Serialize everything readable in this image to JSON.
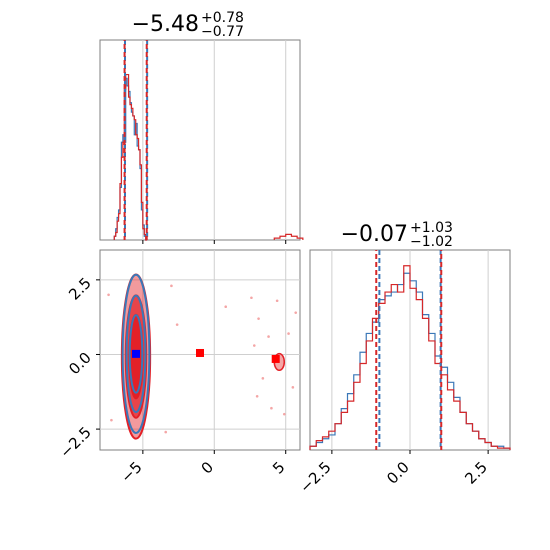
{
  "colors": {
    "blue": "#3b78b8",
    "red": "#d62728",
    "red_fill": "#f4a6a6",
    "red_dark": "#e32026",
    "marker_blue": "#0000ff",
    "marker_red": "#ff0000",
    "grid": "#cfcfcf",
    "axis": "#7f7f7f"
  },
  "chart_data": [
    {
      "type": "histogram",
      "panel": "param1-marginal",
      "title_value": "−5.48",
      "title_sup": "+0.78",
      "title_sub": "−0.77",
      "xlim": [
        -8.0,
        6.0
      ],
      "x_gridlines": [
        -5,
        0,
        5
      ],
      "quantile_lines": {
        "blue": [
          -6.25,
          -4.7
        ],
        "red": [
          -6.28,
          -4.73
        ]
      },
      "blue_hist": {
        "x_start": -7.0,
        "bin_width": 0.1,
        "values": [
          0.02,
          0.06,
          0.12,
          0.16,
          0.28,
          0.52,
          0.56,
          0.52,
          0.86,
          0.82,
          0.79,
          0.73,
          0.68,
          0.66,
          0.56,
          0.62,
          0.5,
          0.48,
          0.38,
          0.16,
          0.08,
          0.02,
          0
        ]
      },
      "red_hist": {
        "x_start": -7.0,
        "bin_width": 0.1,
        "values": [
          0.02,
          0.04,
          0.1,
          0.14,
          0.3,
          0.44,
          0.52,
          0.8,
          0.88,
          0.88,
          0.76,
          0.72,
          0.7,
          0.66,
          0.64,
          0.56,
          0.54,
          0.48,
          0.4,
          0.2,
          0.06,
          0.03,
          0
        ],
        "tail_x": [
          4.2,
          4.6,
          5.0,
          5.4,
          5.8
        ],
        "tail_values": [
          0.01,
          0.02,
          0.03,
          0.02,
          0.01
        ]
      },
      "ymax": 1.0
    },
    {
      "type": "contour-scatter",
      "panel": "param1-vs-param2",
      "xlim": [
        -8.0,
        6.0
      ],
      "ylim": [
        -3.2,
        3.5
      ],
      "x_ticks": [
        -5,
        0,
        5
      ],
      "x_tick_labels": [
        "−5",
        "0",
        "5"
      ],
      "y_ticks": [
        -2.5,
        0.0,
        2.5
      ],
      "y_tick_labels": [
        "−2.5",
        "0.0",
        "2.5"
      ],
      "red_center": [
        -5.48,
        -0.07
      ],
      "blue_center": [
        -5.48,
        0.02
      ],
      "red_contours": [
        {
          "rx": 1.8,
          "ry": 2.75,
          "filled": true,
          "opacity": 0.45
        },
        {
          "rx": 1.3,
          "ry": 2.05,
          "filled": true,
          "opacity": 0.7
        },
        {
          "rx": 0.85,
          "ry": 1.4,
          "filled": true,
          "opacity": 0.95
        }
      ],
      "blue_contours": [
        {
          "rx": 1.7,
          "ry": 2.65
        },
        {
          "rx": 1.2,
          "ry": 1.95
        },
        {
          "rx": 0.8,
          "ry": 1.3
        }
      ],
      "secondary_mode": {
        "center": [
          4.55,
          -0.25
        ],
        "rx": 0.35,
        "ry": 0.28
      },
      "red_markers": [
        [
          -1.0,
          0.05
        ],
        [
          4.3,
          -0.15
        ]
      ],
      "blue_marker": [
        -5.48,
        0.02
      ],
      "sparse_points": [
        [
          2.6,
          1.9
        ],
        [
          3.1,
          1.2
        ],
        [
          3.4,
          -0.8
        ],
        [
          3.8,
          0.6
        ],
        [
          4.0,
          -1.8
        ],
        [
          4.4,
          1.8
        ],
        [
          5.2,
          0.7
        ],
        [
          5.5,
          -1.1
        ],
        [
          5.7,
          1.4
        ],
        [
          3.0,
          -1.4
        ],
        [
          2.8,
          0.3
        ],
        [
          4.9,
          -2.0
        ],
        [
          -3.0,
          2.3
        ],
        [
          -3.4,
          -2.6
        ],
        [
          -2.6,
          1.0
        ],
        [
          -7.4,
          2.0
        ],
        [
          -7.2,
          -2.2
        ],
        [
          0.8,
          1.6
        ]
      ]
    },
    {
      "type": "histogram",
      "panel": "param2-marginal",
      "title_value": "−0.07",
      "title_sup": "+1.03",
      "title_sub": "−1.02",
      "xlim": [
        -3.2,
        3.2
      ],
      "x_ticks": [
        -2.5,
        0.0,
        2.5
      ],
      "x_tick_labels": [
        "−2.5",
        "0.0",
        "2.5"
      ],
      "quantile_lines": {
        "blue": [
          -0.98,
          0.98
        ],
        "red": [
          -1.08,
          1.0
        ]
      },
      "blue_hist": {
        "x_start": -3.2,
        "bin_width": 0.2,
        "values": [
          0.02,
          0.04,
          0.06,
          0.08,
          0.14,
          0.22,
          0.3,
          0.4,
          0.52,
          0.62,
          0.68,
          0.8,
          0.82,
          0.84,
          0.88,
          0.94,
          0.9,
          0.84,
          0.72,
          0.62,
          0.5,
          0.44,
          0.36,
          0.28,
          0.2,
          0.14,
          0.1,
          0.06,
          0.04,
          0.02,
          0.02,
          0.01
        ]
      },
      "red_hist": {
        "x_start": -3.2,
        "bin_width": 0.2,
        "values": [
          0.02,
          0.05,
          0.07,
          0.1,
          0.14,
          0.2,
          0.26,
          0.36,
          0.46,
          0.58,
          0.7,
          0.78,
          0.84,
          0.88,
          0.84,
          0.98,
          0.86,
          0.8,
          0.7,
          0.58,
          0.46,
          0.4,
          0.32,
          0.26,
          0.2,
          0.14,
          0.1,
          0.06,
          0.04,
          0.02,
          0.01,
          0.01
        ]
      },
      "ymax": 1.0
    }
  ]
}
